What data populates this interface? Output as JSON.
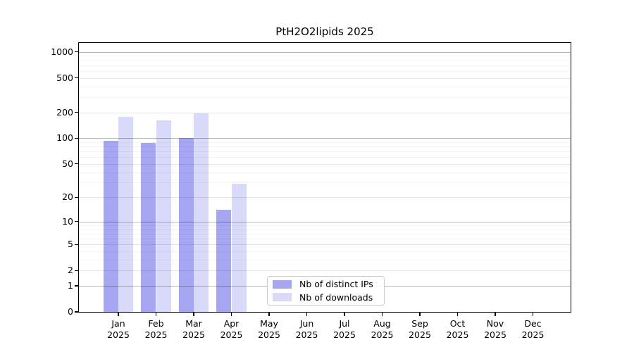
{
  "title": "PtH2O2lipids 2025",
  "chart_data": {
    "type": "bar",
    "title": "PtH2O2lipids 2025",
    "categories": [
      "Jan",
      "Feb",
      "Mar",
      "Apr",
      "May",
      "Jun",
      "Jul",
      "Aug",
      "Sep",
      "Oct",
      "Nov",
      "Dec"
    ],
    "year": "2025",
    "series": [
      {
        "name": "Nb of distinct IPs",
        "color": "#a6a6f2",
        "values": [
          93,
          88,
          100,
          14,
          0,
          0,
          0,
          0,
          0,
          0,
          0,
          0
        ]
      },
      {
        "name": "Nb of downloads",
        "color": "#d9d9f9",
        "values": [
          177,
          162,
          193,
          29,
          0,
          0,
          0,
          0,
          0,
          0,
          0,
          0
        ]
      }
    ],
    "yscale": "log1p",
    "ylim": [
      0,
      1270
    ],
    "yticks": [
      0,
      1,
      2,
      5,
      10,
      20,
      50,
      100,
      200,
      500,
      1000
    ],
    "decade_yticks": [
      1,
      10,
      100,
      1000
    ],
    "minor_yticks": [
      3,
      4,
      6,
      7,
      8,
      9,
      30,
      40,
      60,
      70,
      80,
      90,
      300,
      400,
      600,
      700,
      800,
      900
    ],
    "grid": "horizontal",
    "legend_position": "lower-center",
    "background_color": "#ffffff",
    "spine_color": "#000000"
  }
}
